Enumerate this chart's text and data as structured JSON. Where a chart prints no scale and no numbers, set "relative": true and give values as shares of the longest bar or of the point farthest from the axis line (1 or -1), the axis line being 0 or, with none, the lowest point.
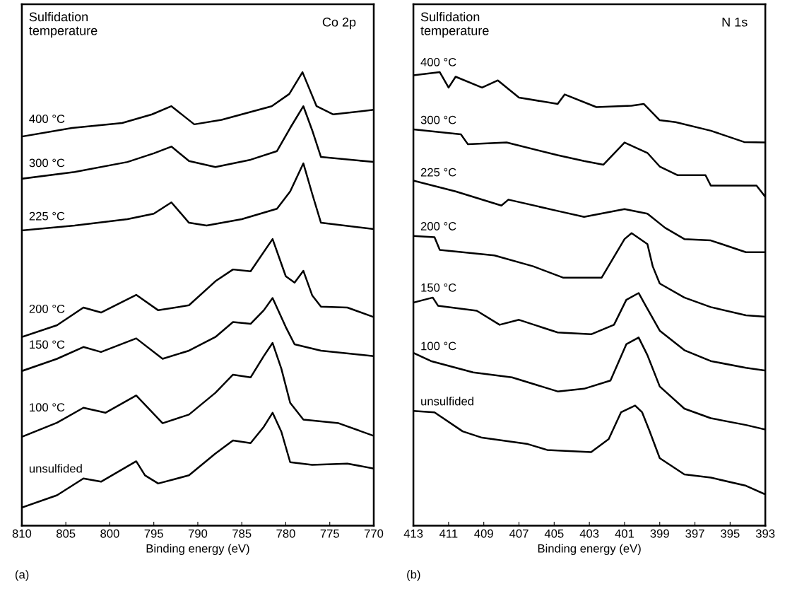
{
  "chart_data": [
    {
      "type": "line",
      "relative": true,
      "xlabel": "Binding energy (eV)",
      "xlim": [
        810,
        770
      ],
      "xticks": [
        810,
        805,
        800,
        795,
        790,
        785,
        780,
        775,
        770
      ],
      "grid": false,
      "legend": false,
      "marker": "none",
      "line_style": "solid",
      "annotations": [
        "Sulfidation\ntemperature",
        "Co 2p",
        "(a)"
      ],
      "series": [
        {
          "name": "400 °C",
          "color": "#000000",
          "x": [
            810,
            804.3,
            798.6,
            795.2,
            793,
            790.4,
            787.3,
            781.6,
            779.6,
            778.1,
            776.5,
            774.6,
            770
          ],
          "values": [
            0.858,
            0.877,
            0.888,
            0.907,
            0.925,
            0.885,
            0.895,
            0.925,
            0.952,
            1.0,
            0.925,
            0.907,
            0.917
          ]
        },
        {
          "name": "300 °C",
          "color": "#000000",
          "x": [
            810,
            804,
            798,
            795,
            793,
            791,
            788,
            784,
            781,
            779.5,
            778,
            777,
            776,
            770
          ],
          "values": [
            0.765,
            0.78,
            0.802,
            0.821,
            0.836,
            0.804,
            0.791,
            0.807,
            0.826,
            0.877,
            0.925,
            0.872,
            0.813,
            0.802
          ]
        },
        {
          "name": "225 °C",
          "color": "#000000",
          "x": [
            810,
            804,
            798,
            795,
            793,
            791,
            789,
            785,
            781,
            779.5,
            778,
            777,
            776,
            770
          ],
          "values": [
            0.651,
            0.662,
            0.676,
            0.688,
            0.713,
            0.668,
            0.662,
            0.676,
            0.699,
            0.737,
            0.799,
            0.732,
            0.668,
            0.654
          ]
        },
        {
          "name": "200 °C",
          "color": "#000000",
          "x": [
            810,
            806,
            803,
            801,
            797,
            794.5,
            791,
            788,
            786,
            784,
            781.5,
            780,
            779,
            778,
            777,
            776,
            773,
            770
          ],
          "values": [
            0.416,
            0.442,
            0.481,
            0.47,
            0.509,
            0.475,
            0.486,
            0.539,
            0.565,
            0.561,
            0.632,
            0.55,
            0.536,
            0.562,
            0.508,
            0.483,
            0.481,
            0.46
          ]
        },
        {
          "name": "150 °C",
          "color": "#000000",
          "x": [
            810,
            806,
            803,
            801,
            797,
            794,
            791,
            788,
            786,
            784,
            782.5,
            781.5,
            780,
            779,
            776,
            770
          ],
          "values": [
            0.341,
            0.368,
            0.394,
            0.383,
            0.413,
            0.368,
            0.386,
            0.416,
            0.449,
            0.445,
            0.475,
            0.502,
            0.438,
            0.4,
            0.386,
            0.374
          ]
        },
        {
          "name": "100 °C",
          "color": "#000000",
          "x": [
            810,
            806,
            803,
            800.5,
            797,
            794,
            791,
            788,
            786,
            784,
            782.5,
            781.5,
            780.5,
            779.5,
            778,
            774,
            770
          ],
          "values": [
            0.196,
            0.227,
            0.26,
            0.249,
            0.287,
            0.226,
            0.245,
            0.293,
            0.333,
            0.327,
            0.374,
            0.403,
            0.346,
            0.271,
            0.234,
            0.226,
            0.198
          ]
        },
        {
          "name": "unsulfided",
          "color": "#000000",
          "x": [
            810,
            806,
            803,
            801,
            797,
            796,
            794.5,
            791,
            788,
            786,
            784,
            782.5,
            781.5,
            780.5,
            779.5,
            777,
            773,
            770
          ],
          "values": [
            0.04,
            0.067,
            0.104,
            0.097,
            0.142,
            0.111,
            0.093,
            0.111,
            0.159,
            0.188,
            0.182,
            0.218,
            0.249,
            0.207,
            0.14,
            0.134,
            0.137,
            0.126
          ]
        }
      ]
    },
    {
      "type": "line",
      "relative": true,
      "xlabel": "Binding energy (eV)",
      "xlim": [
        413,
        393
      ],
      "xticks": [
        413,
        411,
        409,
        407,
        405,
        403,
        401,
        399,
        397,
        395,
        393
      ],
      "grid": false,
      "legend": false,
      "marker": "none",
      "line_style": "solid",
      "annotations": [
        "Sulfidation\ntemperature",
        "N 1s",
        "(b)"
      ],
      "series": [
        {
          "name": "400 °C",
          "color": "#000000",
          "x": [
            413,
            411.5,
            411,
            410.6,
            409.1,
            408.2,
            407,
            404.8,
            404.4,
            402.6,
            400.6,
            399.9,
            399,
            398.1,
            396.1,
            394.2,
            393
          ],
          "values": [
            0.993,
            1.0,
            0.966,
            0.99,
            0.966,
            0.982,
            0.944,
            0.93,
            0.951,
            0.923,
            0.926,
            0.93,
            0.894,
            0.89,
            0.871,
            0.846,
            0.845
          ]
        },
        {
          "name": "300 °C",
          "color": "#000000",
          "x": [
            413,
            410.3,
            409.9,
            407.7,
            404.8,
            403.3,
            402.2,
            401,
            399.7,
            399,
            398,
            396.4,
            396.1,
            393.5,
            393
          ],
          "values": [
            0.874,
            0.863,
            0.841,
            0.845,
            0.817,
            0.804,
            0.796,
            0.845,
            0.822,
            0.792,
            0.773,
            0.773,
            0.75,
            0.75,
            0.725
          ]
        },
        {
          "name": "225 °C",
          "color": "#000000",
          "x": [
            413,
            410.6,
            408,
            407.6,
            404.8,
            403.3,
            401,
            399.7,
            398.7,
            397.6,
            396.1,
            394.1,
            393
          ],
          "values": [
            0.761,
            0.737,
            0.706,
            0.719,
            0.694,
            0.681,
            0.698,
            0.688,
            0.657,
            0.632,
            0.629,
            0.603,
            0.603
          ]
        },
        {
          "name": "200 °C",
          "color": "#000000",
          "x": [
            413,
            411.8,
            411.5,
            408.4,
            406.2,
            404.5,
            402.3,
            401,
            400.6,
            399.7,
            399.4,
            399,
            397.6,
            396.1,
            394.1,
            393
          ],
          "values": [
            0.639,
            0.636,
            0.608,
            0.596,
            0.572,
            0.547,
            0.547,
            0.632,
            0.645,
            0.621,
            0.572,
            0.534,
            0.503,
            0.482,
            0.464,
            0.461
          ]
        },
        {
          "name": "150 °C",
          "color": "#000000",
          "x": [
            413,
            411.9,
            411.6,
            409.4,
            408.1,
            407,
            404.8,
            402.9,
            401.6,
            400.9,
            400.2,
            399.8,
            399,
            397.6,
            396.1,
            394.1,
            393
          ],
          "values": [
            0.492,
            0.503,
            0.485,
            0.474,
            0.443,
            0.454,
            0.426,
            0.422,
            0.443,
            0.498,
            0.513,
            0.485,
            0.43,
            0.387,
            0.363,
            0.348,
            0.342
          ]
        },
        {
          "name": "100 °C",
          "color": "#000000",
          "x": [
            413,
            412,
            409.6,
            407.4,
            404.8,
            403.3,
            401.8,
            400.9,
            400.2,
            399.7,
            399,
            397.6,
            396.1,
            394.1,
            393
          ],
          "values": [
            0.381,
            0.363,
            0.338,
            0.327,
            0.296,
            0.302,
            0.32,
            0.4,
            0.415,
            0.376,
            0.307,
            0.258,
            0.237,
            0.222,
            0.212
          ]
        },
        {
          "name": "unsulfided",
          "color": "#000000",
          "x": [
            413,
            411.8,
            410.2,
            409.1,
            406.5,
            405.4,
            402.9,
            401.9,
            401.2,
            400.4,
            400,
            399.6,
            399,
            397.6,
            396.1,
            394.1,
            393
          ],
          "values": [
            0.253,
            0.25,
            0.208,
            0.194,
            0.18,
            0.167,
            0.162,
            0.191,
            0.25,
            0.265,
            0.25,
            0.211,
            0.149,
            0.113,
            0.106,
            0.088,
            0.069
          ]
        }
      ]
    }
  ]
}
